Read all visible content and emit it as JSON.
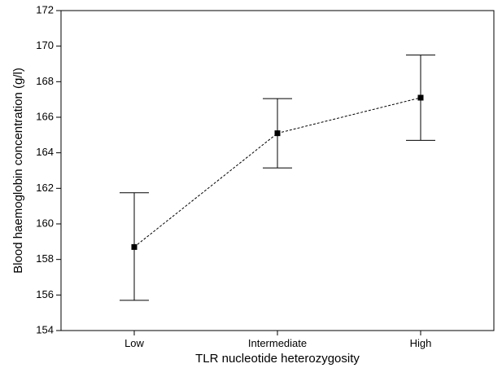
{
  "chart_data": {
    "type": "line",
    "title": "",
    "xlabel": "TLR nucleotide heterozygosity",
    "ylabel": "Blood haemoglobin concentration (g/l)",
    "categories": [
      "Low",
      "Intermediate",
      "High"
    ],
    "series": [
      {
        "values": [
          158.7,
          165.1,
          167.1
        ],
        "error_low": [
          155.7,
          163.15,
          164.7
        ],
        "error_high": [
          161.75,
          167.05,
          169.5
        ]
      }
    ],
    "ylim": [
      154,
      172
    ],
    "yticks": [
      154,
      156,
      158,
      160,
      162,
      164,
      166,
      168,
      170,
      172
    ],
    "grid": false,
    "line_style": "dashed",
    "marker": "square",
    "colors": {
      "line": "#000000",
      "marker": "#000000"
    }
  }
}
